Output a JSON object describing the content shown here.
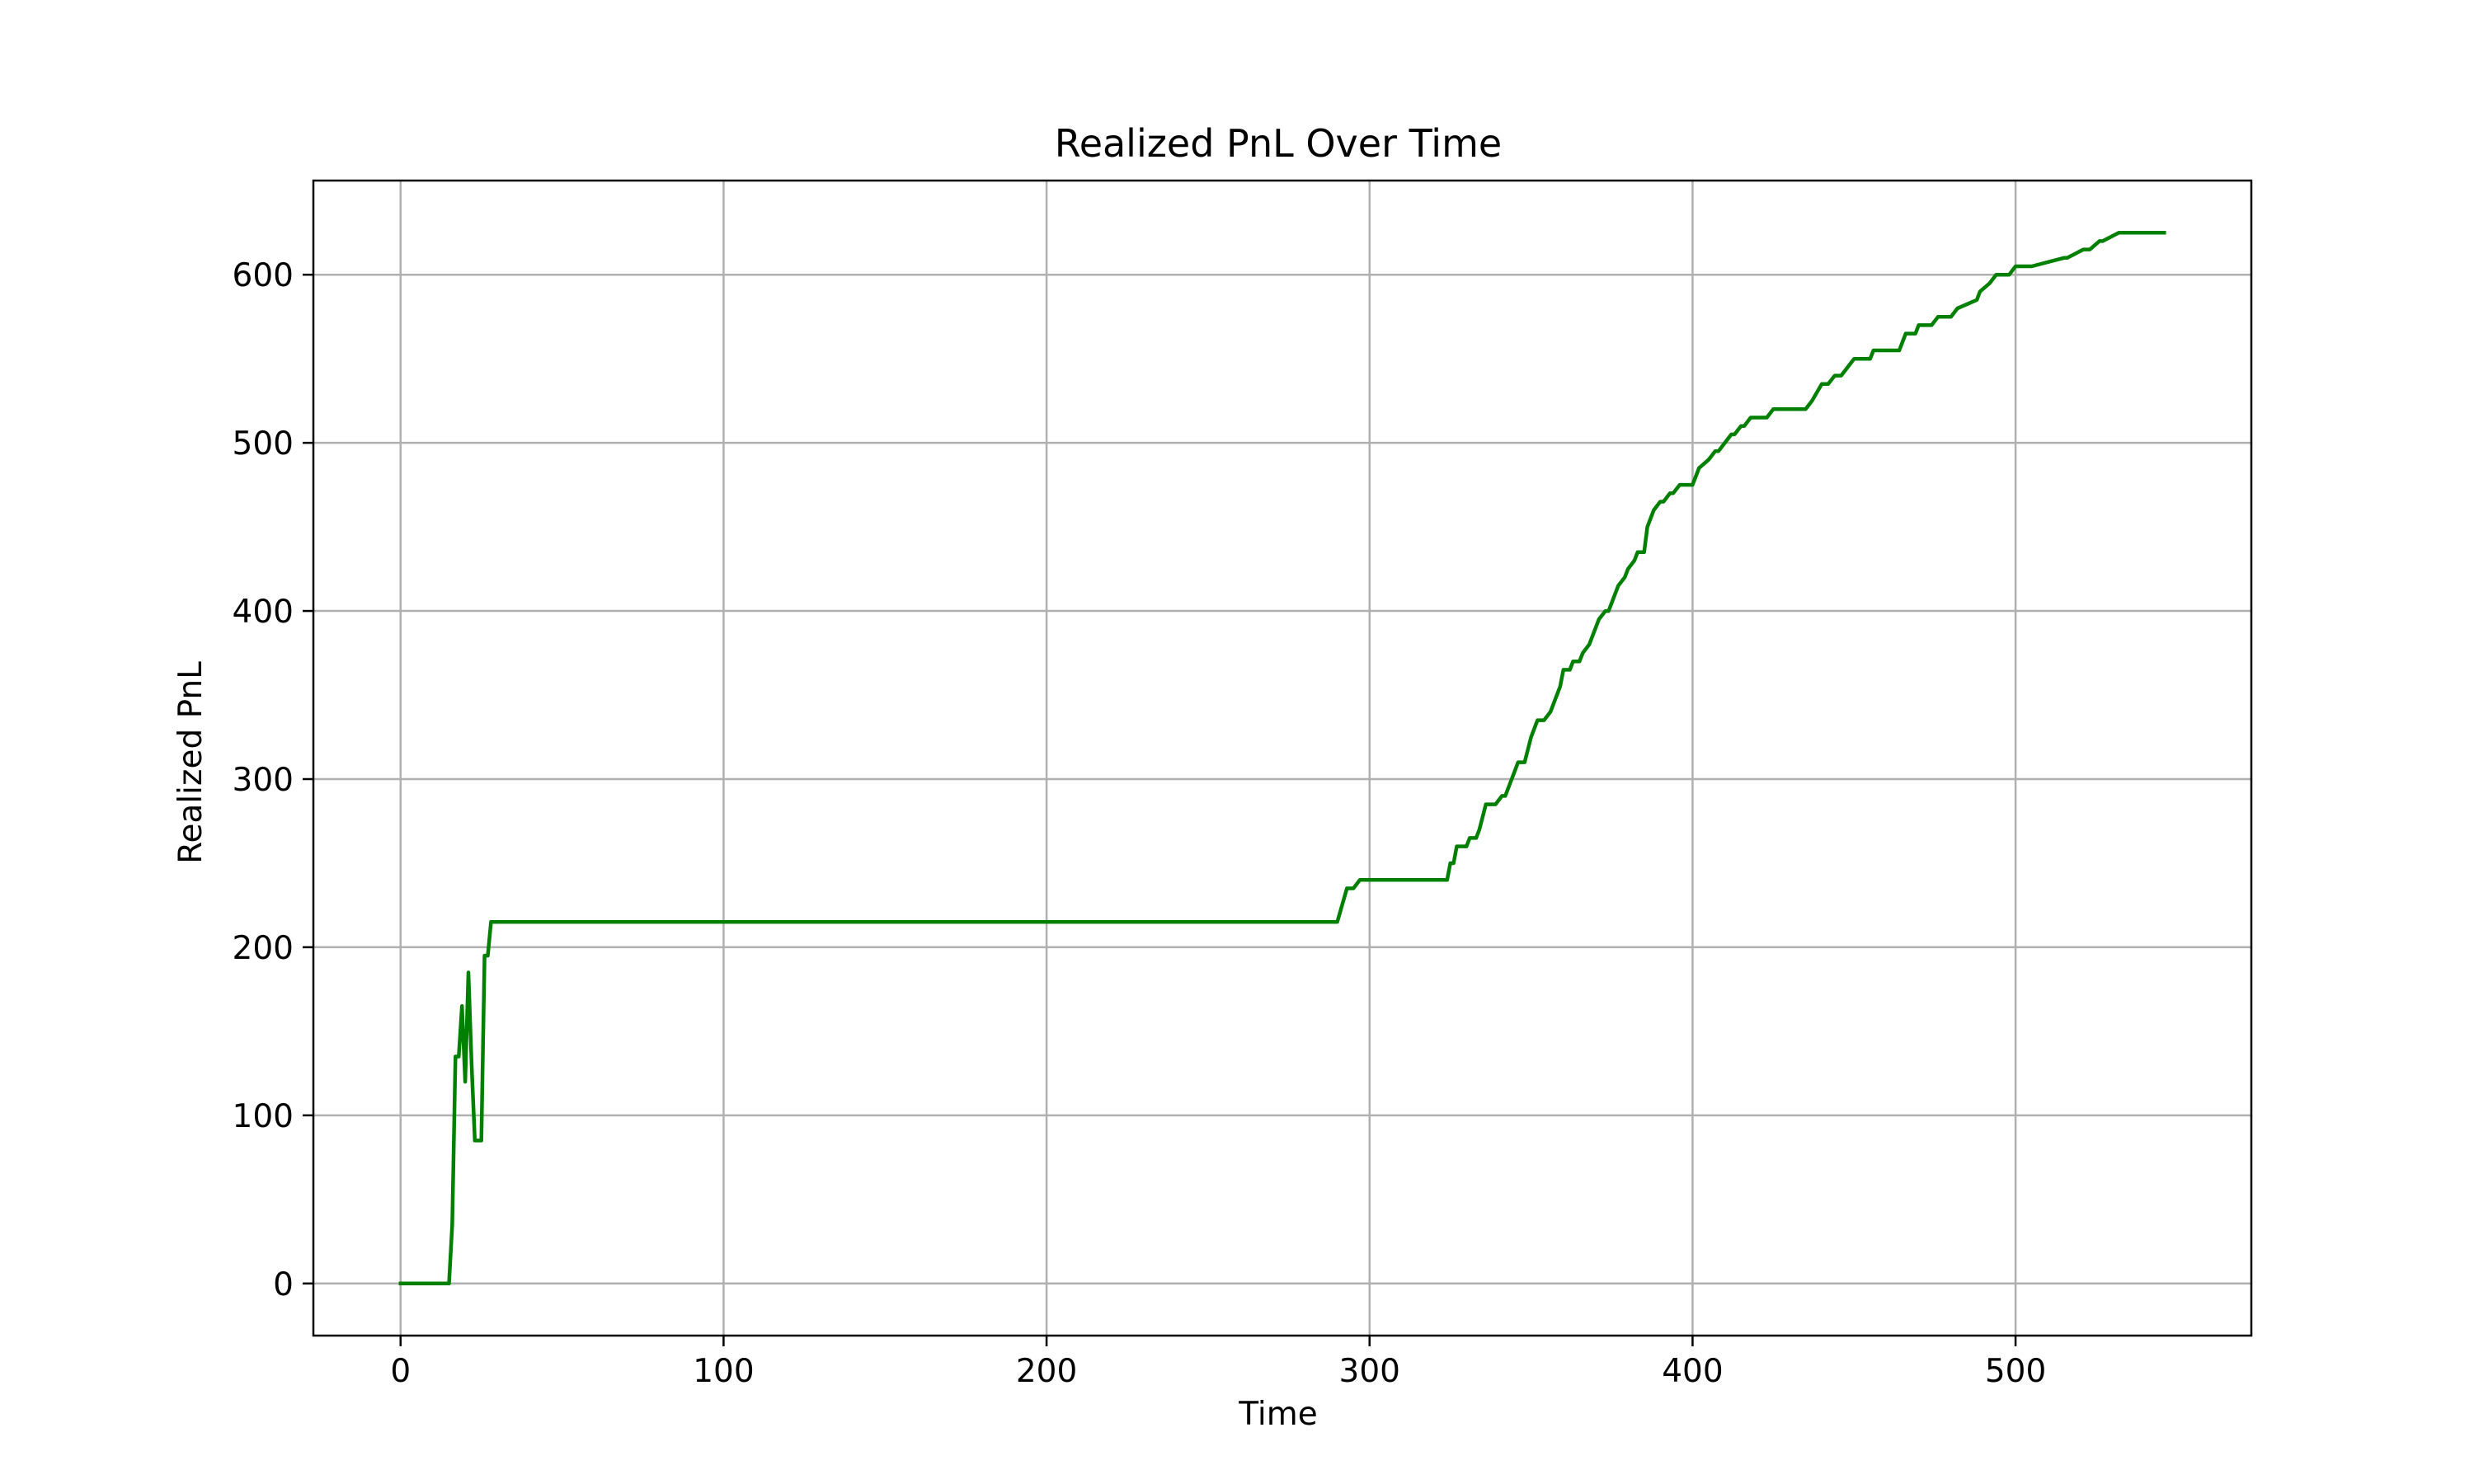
{
  "chart_data": {
    "type": "line",
    "title": "Realized PnL Over Time",
    "xlabel": "Time",
    "ylabel": "Realized PnL",
    "xlim": [
      -27,
      573
    ],
    "ylim": [
      -31,
      656
    ],
    "xticks": [
      0,
      100,
      200,
      300,
      400,
      500
    ],
    "yticks": [
      0,
      100,
      200,
      300,
      400,
      500,
      600
    ],
    "grid": true,
    "legend": "none",
    "line_color": "#008000",
    "series": [
      {
        "x": [
          0,
          15,
          16,
          17,
          18,
          19,
          20,
          21,
          22,
          23,
          25,
          26,
          27,
          28,
          290,
          293,
          295,
          297,
          300,
          324,
          325,
          326,
          327,
          330,
          331,
          333,
          334,
          336,
          338,
          339,
          341,
          342,
          344,
          346,
          348,
          350,
          352,
          354,
          356,
          357,
          359,
          360,
          362,
          363,
          365,
          366,
          368,
          370,
          371,
          373,
          374,
          376,
          377,
          379,
          380,
          382,
          383,
          385,
          386,
          388,
          390,
          391,
          393,
          394,
          396,
          398,
          400,
          402,
          405,
          407,
          408,
          410,
          412,
          413,
          415,
          416,
          418,
          420,
          421,
          423,
          425,
          435,
          437,
          440,
          442,
          444,
          446,
          450,
          452,
          455,
          456,
          464,
          466,
          469,
          470,
          474,
          476,
          480,
          482,
          488,
          489,
          492,
          494,
          497,
          498,
          500,
          502,
          505,
          515,
          516,
          521,
          523,
          526,
          527,
          532,
          533,
          546
        ],
        "y": [
          0,
          0,
          35,
          135,
          135,
          165,
          120,
          185,
          130,
          85,
          85,
          195,
          195,
          215,
          215,
          235,
          235,
          240,
          240,
          240,
          250,
          250,
          260,
          260,
          265,
          265,
          270,
          285,
          285,
          285,
          290,
          290,
          300,
          310,
          310,
          325,
          335,
          335,
          340,
          345,
          355,
          365,
          365,
          370,
          370,
          375,
          380,
          390,
          395,
          400,
          400,
          410,
          415,
          420,
          425,
          430,
          435,
          435,
          450,
          460,
          465,
          465,
          470,
          470,
          475,
          475,
          475,
          485,
          490,
          495,
          495,
          500,
          505,
          505,
          510,
          510,
          515,
          515,
          515,
          515,
          520,
          520,
          525,
          535,
          535,
          540,
          540,
          550,
          550,
          550,
          555,
          555,
          565,
          565,
          570,
          570,
          575,
          575,
          580,
          585,
          590,
          595,
          600,
          600,
          600,
          605,
          605,
          605,
          610,
          610,
          615,
          615,
          620,
          620,
          625,
          625,
          625
        ]
      }
    ]
  }
}
